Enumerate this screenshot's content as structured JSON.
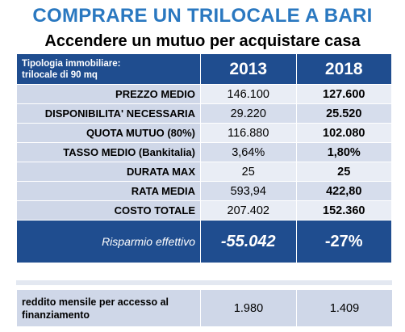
{
  "title": "COMPRARE UN TRILOCALE A BARI",
  "subtitle": "Accendere un mutuo per acquistare casa",
  "table": {
    "header": {
      "label_line1": "Tipologia  immobiliare:",
      "label_line2": "trilocale  di 90 mq",
      "year1": "2013",
      "year2": "2018"
    },
    "rows": [
      {
        "label": "PREZZO MEDIO",
        "v2013": "146.100",
        "v2018": "127.600"
      },
      {
        "label": "DISPONIBILITA' NECESSARIA",
        "v2013": "29.220",
        "v2018": "25.520"
      },
      {
        "label": "QUOTA MUTUO (80%)",
        "v2013": "116.880",
        "v2018": "102.080"
      },
      {
        "label": "TASSO MEDIO (Bankitalia)",
        "v2013": "3,64%",
        "v2018": "1,80%"
      },
      {
        "label": "DURATA MAX",
        "v2013": "25",
        "v2018": "25"
      },
      {
        "label": "RATA MEDIA",
        "v2013": "593,94",
        "v2018": "422,80"
      },
      {
        "label": "COSTO TOTALE",
        "v2013": "207.402",
        "v2018": "152.360"
      }
    ],
    "savings": {
      "label": "Risparmio effettivo",
      "value": "-55.042",
      "percent": "-27%"
    }
  },
  "income": {
    "label_line1": "reddito mensile per accesso al",
    "label_line2": "finanziamento",
    "v2013": "1.980",
    "v2018": "1.409"
  }
}
